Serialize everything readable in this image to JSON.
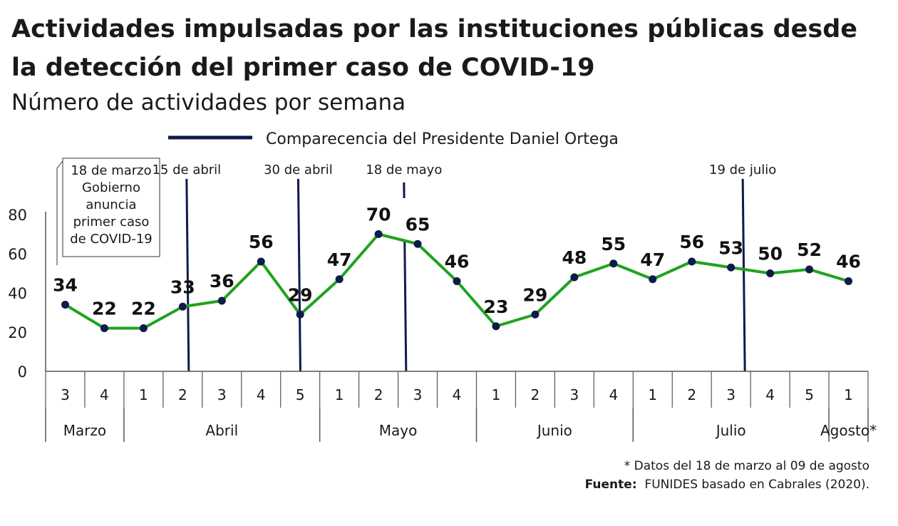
{
  "title": "Actividades impulsadas por las instituciones públicas desde la detección del primer caso de COVID-19",
  "subtitle": "Número de actividades por semana",
  "note": "* Datos del 18 de marzo al 09 de agosto",
  "source_label": "Fuente:",
  "source_text": "FUNIDES basado en Cabrales (2020).",
  "colors": {
    "line": "#1fa31f",
    "marker": "#0e1a4a",
    "event": "#0e1a4a",
    "axis": "#555555"
  },
  "chart_data": {
    "type": "line",
    "title": "Actividades impulsadas por las instituciones públicas desde la detección del primer caso de COVID-19",
    "subtitle": "Número de actividades por semana",
    "xlabel": "",
    "ylabel": "",
    "ylim": [
      0,
      80
    ],
    "yticks": [
      0,
      20,
      40,
      60,
      80
    ],
    "grid": false,
    "legend": {
      "position": "top",
      "entries": [
        "Comparecencia del Presidente Daniel Ortega"
      ]
    },
    "x": [
      "3",
      "4",
      "1",
      "2",
      "3",
      "4",
      "5",
      "1",
      "2",
      "3",
      "4",
      "1",
      "2",
      "3",
      "4",
      "1",
      "2",
      "3",
      "4",
      "5",
      "1"
    ],
    "values": [
      34,
      22,
      22,
      33,
      36,
      56,
      29,
      47,
      70,
      65,
      46,
      23,
      29,
      48,
      55,
      47,
      56,
      53,
      50,
      52,
      46
    ],
    "months": [
      {
        "label": "Marzo",
        "weeks": 2
      },
      {
        "label": "Abril",
        "weeks": 5
      },
      {
        "label": "Mayo",
        "weeks": 4
      },
      {
        "label": "Junio",
        "weeks": 4
      },
      {
        "label": "Julio",
        "weeks": 5
      },
      {
        "label": "Agosto*",
        "weeks": 1
      }
    ],
    "events": [
      {
        "label": "15 de abril",
        "position": 3.6
      },
      {
        "label": "30 de abril",
        "position": 6.45
      },
      {
        "label": "18 de mayo",
        "position": 9.15
      },
      {
        "label": "19 de julio",
        "position": 17.8
      }
    ],
    "annotation": {
      "lines": [
        "18 de marzo",
        "Gobierno",
        "anuncia",
        "primer caso",
        "de COVID-19"
      ]
    }
  }
}
